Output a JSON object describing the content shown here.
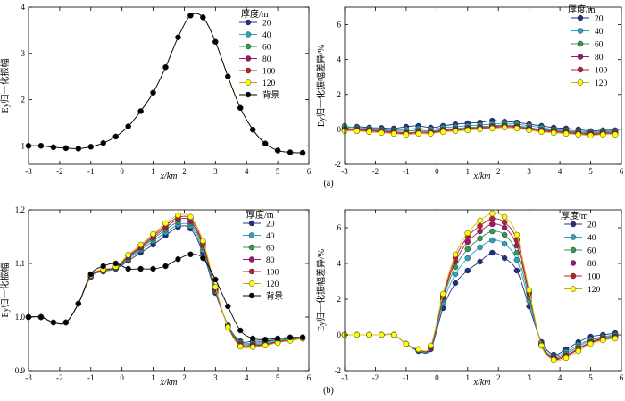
{
  "series_styles": [
    {
      "name": "20",
      "color": "#1f2f86"
    },
    {
      "name": "40",
      "color": "#2aa5bd"
    },
    {
      "name": "60",
      "color": "#2e9c4f"
    },
    {
      "name": "80",
      "color": "#a0136f"
    },
    {
      "name": "100",
      "color": "#c01c2c"
    },
    {
      "name": "120",
      "color": "#ffff00"
    },
    {
      "name": "背景",
      "color": "#000000"
    }
  ],
  "chart_data": [
    {
      "type": "line",
      "panel": "a-left",
      "xlabel": "x/km",
      "ylabel": "Ey归一化振幅",
      "legend_title": "厚度/m",
      "legend_entries": [
        "20",
        "40",
        "60",
        "80",
        "100",
        "120",
        "背景"
      ],
      "xlim": [
        -3,
        6
      ],
      "ylim": [
        0.6,
        4.0
      ],
      "xticks": [
        -3,
        -2,
        -1,
        0,
        1,
        2,
        3,
        4,
        5,
        6
      ],
      "yticks": [
        1,
        2,
        3,
        4
      ],
      "x": [
        -3,
        -2.6,
        -2.2,
        -1.8,
        -1.4,
        -1.0,
        -0.6,
        -0.2,
        0.2,
        0.6,
        1.0,
        1.4,
        1.8,
        2.2,
        2.6,
        3.0,
        3.4,
        3.8,
        4.2,
        4.6,
        5.0,
        5.4,
        5.8
      ],
      "series": [
        {
          "name": "120",
          "values": [
            1.0,
            1.0,
            0.97,
            0.95,
            0.94,
            0.98,
            1.06,
            1.2,
            1.42,
            1.75,
            2.15,
            2.7,
            3.35,
            3.82,
            3.78,
            3.25,
            2.5,
            1.82,
            1.35,
            1.05,
            0.9,
            0.86,
            0.85
          ]
        },
        {
          "name": "背景",
          "values": [
            1.0,
            1.0,
            0.97,
            0.95,
            0.94,
            0.98,
            1.06,
            1.2,
            1.42,
            1.75,
            2.15,
            2.7,
            3.35,
            3.82,
            3.78,
            3.25,
            2.5,
            1.82,
            1.35,
            1.05,
            0.9,
            0.86,
            0.85
          ]
        }
      ]
    },
    {
      "type": "line",
      "panel": "a-right",
      "xlabel": "x/km",
      "ylabel": "Ey归一化振幅差异/%",
      "legend_title": "厚度/m",
      "legend_entries": [
        "20",
        "40",
        "60",
        "80",
        "100",
        "120"
      ],
      "xlim": [
        -3,
        6
      ],
      "ylim": [
        -2,
        7
      ],
      "xticks": [
        -3,
        -2,
        -1,
        0,
        1,
        2,
        3,
        4,
        5,
        6
      ],
      "yticks": [
        -2,
        0,
        2,
        4,
        6
      ],
      "x": [
        -3,
        -2.6,
        -2.2,
        -1.8,
        -1.4,
        -1.0,
        -0.6,
        -0.2,
        0.2,
        0.6,
        1.0,
        1.4,
        1.8,
        2.2,
        2.6,
        3.0,
        3.4,
        3.8,
        4.2,
        4.6,
        5.0,
        5.4,
        5.8
      ],
      "series": [
        {
          "name": "20",
          "values": [
            0.05,
            0.15,
            0.1,
            0.08,
            0.05,
            0.15,
            0.2,
            0.1,
            0.2,
            0.3,
            0.35,
            0.4,
            0.5,
            0.45,
            0.4,
            0.3,
            0.2,
            0.1,
            0.05,
            0.0,
            -0.1,
            -0.05,
            -0.05
          ]
        },
        {
          "name": "40",
          "values": [
            0.15,
            0.1,
            0.05,
            0.0,
            -0.05,
            0.0,
            0.05,
            0.0,
            0.1,
            0.15,
            0.2,
            0.25,
            0.3,
            0.35,
            0.3,
            0.2,
            0.1,
            0.0,
            -0.05,
            -0.1,
            -0.15,
            -0.1,
            -0.1
          ]
        },
        {
          "name": "60",
          "values": [
            0.2,
            0.05,
            0.0,
            -0.05,
            -0.1,
            -0.1,
            -0.05,
            -0.1,
            0.0,
            0.05,
            0.1,
            0.15,
            0.2,
            0.25,
            0.2,
            0.1,
            0.0,
            -0.05,
            -0.1,
            -0.15,
            -0.2,
            -0.15,
            -0.15
          ]
        },
        {
          "name": "80",
          "values": [
            0.0,
            0.0,
            -0.05,
            -0.1,
            -0.15,
            -0.2,
            -0.15,
            -0.15,
            -0.05,
            0.0,
            0.05,
            0.1,
            0.15,
            0.2,
            0.15,
            0.05,
            -0.05,
            -0.1,
            -0.15,
            -0.2,
            -0.25,
            -0.2,
            -0.2
          ]
        },
        {
          "name": "100",
          "values": [
            -0.05,
            -0.05,
            -0.1,
            -0.15,
            -0.2,
            -0.25,
            -0.2,
            -0.2,
            -0.1,
            -0.05,
            0.0,
            0.05,
            0.1,
            0.15,
            0.1,
            0.0,
            -0.1,
            -0.15,
            -0.2,
            -0.25,
            -0.3,
            -0.25,
            -0.25
          ]
        },
        {
          "name": "120",
          "values": [
            -0.1,
            -0.1,
            -0.15,
            -0.2,
            -0.25,
            -0.3,
            -0.25,
            -0.25,
            -0.15,
            -0.1,
            -0.05,
            0.0,
            0.05,
            0.1,
            0.05,
            -0.05,
            -0.15,
            -0.2,
            -0.25,
            -0.3,
            -0.35,
            -0.3,
            -0.3
          ]
        }
      ]
    },
    {
      "type": "line",
      "panel": "b-left",
      "xlabel": "x/km",
      "ylabel": "Ey归一化振幅",
      "legend_title": "厚度/m",
      "legend_entries": [
        "20",
        "40",
        "60",
        "80",
        "100",
        "120",
        "背景"
      ],
      "xlim": [
        -3,
        6
      ],
      "ylim": [
        0.9,
        1.2
      ],
      "xticks": [
        -3,
        -2,
        -1,
        0,
        1,
        2,
        3,
        4,
        5,
        6
      ],
      "yticks": [
        0.9,
        1.0,
        1.1,
        1.2
      ],
      "ytick_labels": [
        "0.9",
        "1.0",
        "1.1",
        "1.2"
      ],
      "x": [
        -3,
        -2.6,
        -2.2,
        -1.8,
        -1.4,
        -1.0,
        -0.6,
        -0.2,
        0.2,
        0.6,
        1.0,
        1.4,
        1.8,
        2.2,
        2.6,
        3.0,
        3.4,
        3.8,
        4.2,
        4.6,
        5.0,
        5.4,
        5.8
      ],
      "series": [
        {
          "name": "20",
          "values": [
            1.0,
            1.0,
            0.99,
            0.99,
            1.025,
            1.075,
            1.085,
            1.09,
            1.105,
            1.12,
            1.135,
            1.152,
            1.168,
            1.165,
            1.12,
            1.045,
            0.985,
            0.955,
            0.955,
            0.955,
            0.958,
            0.96,
            0.962
          ]
        },
        {
          "name": "40",
          "values": [
            1.0,
            1.0,
            0.99,
            0.99,
            1.025,
            1.075,
            1.085,
            1.09,
            1.108,
            1.125,
            1.142,
            1.158,
            1.172,
            1.17,
            1.125,
            1.048,
            0.985,
            0.953,
            0.952,
            0.953,
            0.957,
            0.959,
            0.961
          ]
        },
        {
          "name": "60",
          "values": [
            1.0,
            1.0,
            0.99,
            0.99,
            1.025,
            1.076,
            1.086,
            1.091,
            1.11,
            1.128,
            1.146,
            1.163,
            1.177,
            1.175,
            1.13,
            1.05,
            0.984,
            0.951,
            0.95,
            0.951,
            0.955,
            0.958,
            0.96
          ]
        },
        {
          "name": "80",
          "values": [
            1.0,
            1.0,
            0.99,
            0.99,
            1.025,
            1.076,
            1.087,
            1.092,
            1.112,
            1.13,
            1.149,
            1.167,
            1.182,
            1.179,
            1.134,
            1.052,
            0.983,
            0.949,
            0.948,
            0.949,
            0.954,
            0.957,
            0.96
          ]
        },
        {
          "name": "100",
          "values": [
            1.0,
            1.0,
            0.99,
            0.99,
            1.025,
            1.077,
            1.088,
            1.093,
            1.114,
            1.132,
            1.152,
            1.171,
            1.186,
            1.183,
            1.138,
            1.054,
            0.982,
            0.947,
            0.946,
            0.948,
            0.953,
            0.957,
            0.96
          ]
        },
        {
          "name": "120",
          "values": [
            1.0,
            1.0,
            0.99,
            0.99,
            1.025,
            1.078,
            1.089,
            1.094,
            1.116,
            1.135,
            1.155,
            1.175,
            1.19,
            1.187,
            1.142,
            1.056,
            0.981,
            0.945,
            0.944,
            0.947,
            0.952,
            0.956,
            0.96
          ]
        },
        {
          "name": "背景",
          "values": [
            1.0,
            1.0,
            0.99,
            0.99,
            1.025,
            1.08,
            1.095,
            1.1,
            1.09,
            1.09,
            1.09,
            1.095,
            1.108,
            1.117,
            1.11,
            1.07,
            1.02,
            0.975,
            0.96,
            0.958,
            0.96,
            0.962,
            0.962
          ]
        }
      ]
    },
    {
      "type": "line",
      "panel": "b-right",
      "xlabel": "x/km",
      "ylabel": "Ey归一化振幅差异/%",
      "legend_title": "厚度/m",
      "legend_entries": [
        "20",
        "40",
        "60",
        "80",
        "100",
        "120"
      ],
      "xlim": [
        -3,
        6
      ],
      "ylim": [
        -2,
        7
      ],
      "xticks": [
        -3,
        -2,
        -1,
        0,
        1,
        2,
        3,
        4,
        5,
        6
      ],
      "yticks": [
        -2,
        0,
        2,
        4,
        6
      ],
      "x": [
        -3,
        -2.6,
        -2.2,
        -1.8,
        -1.4,
        -1.0,
        -0.6,
        -0.2,
        0.2,
        0.6,
        1.0,
        1.4,
        1.8,
        2.2,
        2.6,
        3.0,
        3.4,
        3.8,
        4.2,
        4.6,
        5.0,
        5.4,
        5.8
      ],
      "series": [
        {
          "name": "20",
          "values": [
            0.0,
            0.0,
            0.0,
            0.0,
            0.0,
            -0.5,
            -0.9,
            -0.8,
            1.5,
            2.9,
            3.6,
            4.1,
            4.6,
            4.3,
            3.6,
            1.6,
            -0.4,
            -1.1,
            -0.8,
            -0.4,
            -0.1,
            0.0,
            0.1
          ]
        },
        {
          "name": "40",
          "values": [
            0.0,
            0.0,
            0.0,
            0.0,
            0.0,
            -0.5,
            -0.85,
            -0.75,
            1.8,
            3.4,
            4.3,
            4.9,
            5.3,
            5.1,
            4.2,
            1.9,
            -0.5,
            -1.2,
            -0.95,
            -0.55,
            -0.25,
            -0.1,
            0.0
          ]
        },
        {
          "name": "60",
          "values": [
            0.0,
            0.0,
            0.0,
            0.0,
            0.0,
            -0.5,
            -0.8,
            -0.7,
            2.0,
            3.8,
            4.8,
            5.4,
            5.8,
            5.6,
            4.6,
            2.1,
            -0.5,
            -1.25,
            -1.05,
            -0.65,
            -0.3,
            -0.15,
            -0.05
          ]
        },
        {
          "name": "80",
          "values": [
            0.0,
            0.0,
            0.0,
            0.0,
            0.0,
            -0.5,
            -0.8,
            -0.7,
            2.1,
            4.1,
            5.2,
            5.8,
            6.2,
            6.0,
            5.0,
            2.3,
            -0.55,
            -1.3,
            -1.15,
            -0.75,
            -0.4,
            -0.2,
            -0.1
          ]
        },
        {
          "name": "100",
          "values": [
            0.0,
            0.0,
            0.0,
            0.0,
            0.0,
            -0.5,
            -0.8,
            -0.65,
            2.2,
            4.3,
            5.5,
            6.1,
            6.5,
            6.3,
            5.3,
            2.4,
            -0.6,
            -1.35,
            -1.2,
            -0.8,
            -0.45,
            -0.25,
            -0.15
          ]
        },
        {
          "name": "120",
          "values": [
            0.0,
            0.0,
            0.0,
            0.0,
            0.0,
            -0.5,
            -0.8,
            -0.6,
            2.3,
            4.5,
            5.7,
            6.4,
            6.8,
            6.6,
            5.6,
            2.5,
            -0.6,
            -1.4,
            -1.3,
            -0.9,
            -0.5,
            -0.3,
            -0.2
          ]
        }
      ]
    }
  ],
  "panel_labels": {
    "a": "(a)",
    "b": "(b)"
  }
}
